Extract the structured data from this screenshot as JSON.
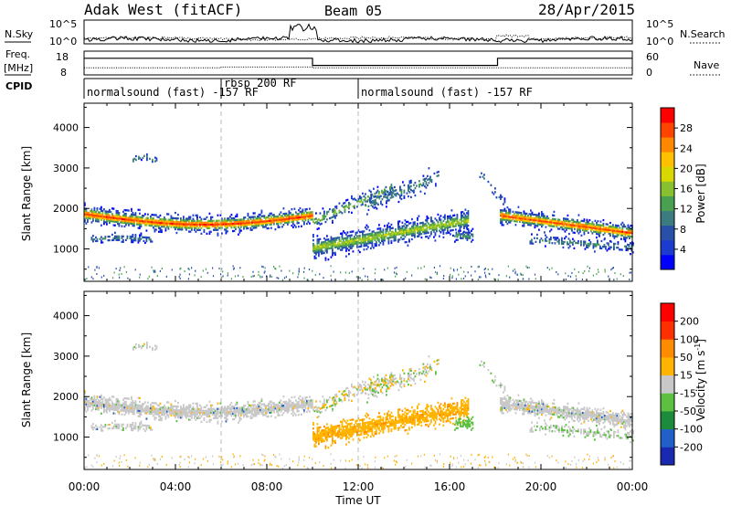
{
  "header": {
    "radar": "Adak West (fitACF)",
    "beam": "Beam 05",
    "date": "28/Apr/2015"
  },
  "chart_data": [
    {
      "type": "line",
      "panel": "noise",
      "left_label": "N.Sky",
      "right_label": "N.Search",
      "y_ticks_left": [
        "10^5",
        "10^0"
      ],
      "y_ticks_right": [
        "10^5",
        "10^0"
      ],
      "ylim": [
        0,
        5
      ],
      "yscale": "log"
    },
    {
      "type": "line",
      "panel": "frequency",
      "left_label_top": "Freq.",
      "left_label_bottom": "[MHz]",
      "right_label": "Nave",
      "y_ticks_left": [
        "18",
        "8"
      ],
      "y_ticks_right": [
        "60",
        "0"
      ],
      "ylim_left": [
        8,
        18
      ],
      "ylim_right": [
        0,
        60
      ],
      "freq_segments": [
        {
          "x0": 0.0,
          "x1": 10.0,
          "y": 15.0
        },
        {
          "x0": 10.0,
          "x1": 18.1,
          "y": 12.0
        },
        {
          "x0": 18.1,
          "x1": 24.0,
          "y": 15.0
        }
      ],
      "nave_segments": [
        {
          "x0": 0.0,
          "x1": 6.0,
          "y": 18
        },
        {
          "x0": 6.0,
          "x1": 10.0,
          "y": 20
        },
        {
          "x0": 10.0,
          "x1": 18.1,
          "y": 18
        },
        {
          "x0": 18.1,
          "x1": 24.0,
          "y": 18
        }
      ]
    },
    {
      "type": "table",
      "panel": "cpid",
      "label": "CPID",
      "entries": [
        {
          "x": 0.0,
          "text": "normalsound (fast) -157 RF",
          "row": 1
        },
        {
          "x": 6.0,
          "text": "rbsp 200 RF",
          "row": 0
        },
        {
          "x": 12.0,
          "text": "normalsound (fast) -157 RF",
          "row": 1
        }
      ],
      "boundaries": [
        6.0,
        12.0
      ]
    },
    {
      "type": "heatmap",
      "panel": "power",
      "ylabel": "Slant Range [km]",
      "xlim": [
        0,
        24
      ],
      "ylim": [
        200,
        4600
      ],
      "y_ticks": [
        1000,
        2000,
        3000,
        4000
      ],
      "colorbar": {
        "label": "Power [dB]",
        "range": [
          0,
          32
        ],
        "ticks": [
          "4",
          "8",
          "12",
          "16",
          "20",
          "24",
          "28"
        ],
        "colors": [
          "#0000ff",
          "#1c3cd0",
          "#2850a8",
          "#3c7c80",
          "#48a050",
          "#88c030",
          "#d8d800",
          "#ffc000",
          "#ff8800",
          "#ff4400",
          "#ff0000"
        ]
      },
      "dashed_times": [
        6.0,
        12.0
      ]
    },
    {
      "type": "heatmap",
      "panel": "velocity",
      "ylabel": "Slant Range [km]",
      "xlabel": "Time UT",
      "xlim": [
        0,
        24
      ],
      "ylim": [
        200,
        4600
      ],
      "y_ticks": [
        1000,
        2000,
        3000,
        4000
      ],
      "x_ticks": [
        "00:00",
        "04:00",
        "08:00",
        "12:00",
        "16:00",
        "20:00",
        "00:00"
      ],
      "colorbar": {
        "label": "Velocity [m s-1]",
        "label_main": "Velocity [m s",
        "label_sup": "-1",
        "label_end": "]",
        "ticks": [
          "200",
          "100",
          "50",
          "15",
          "-15",
          "-50",
          "-100",
          "-200"
        ],
        "colors": [
          "#1a2ab0",
          "#2060c8",
          "#1c8c3c",
          "#5cc040",
          "#c8c8c8",
          "#ffb400",
          "#ff8c00",
          "#ff3000",
          "#ff0000"
        ]
      },
      "dashed_times": [
        6.0,
        12.0
      ]
    }
  ]
}
